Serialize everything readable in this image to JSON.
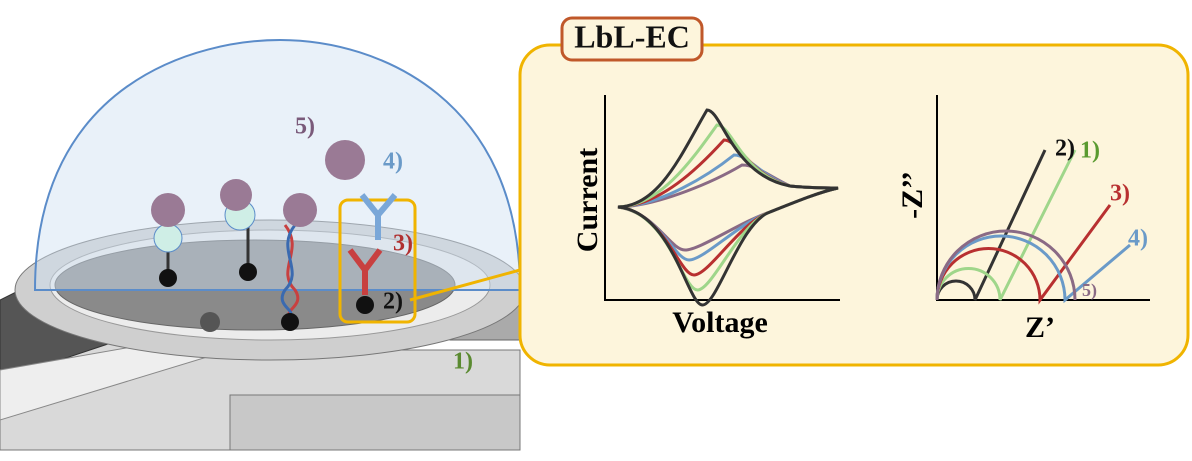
{
  "title": "LbL-EC",
  "cv_plot": {
    "y_label": "Current",
    "x_label": "Voltage"
  },
  "eis_plot": {
    "y_label": "-Z’’",
    "x_label": "Z’",
    "curve_labels": [
      "2)",
      "1)",
      "3)",
      "4)",
      "5)"
    ]
  },
  "sensor_labels": [
    "5)",
    "4)",
    "3)",
    "2)",
    "1)"
  ]
}
